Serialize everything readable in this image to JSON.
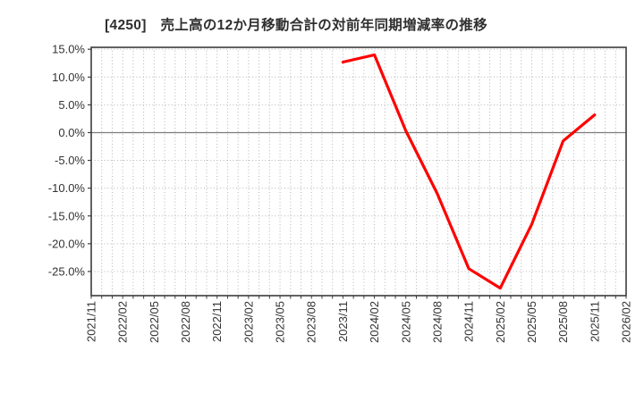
{
  "chart_data": {
    "type": "line",
    "title": "[4250]　売上高の12か月移動合計の対前年同期増減率の推移",
    "ylabel": "",
    "xlabel": "",
    "grid": "dotted, monthly vertical gridlines, 5% horizontal gridlines, solid zero line",
    "legend": "none",
    "x_tick_labels": [
      "2021/11",
      "2022/02",
      "2022/05",
      "2022/08",
      "2022/11",
      "2023/02",
      "2023/05",
      "2023/08",
      "2023/11",
      "2024/02",
      "2024/05",
      "2024/08",
      "2024/11",
      "2025/02",
      "2025/05",
      "2025/08",
      "2025/11",
      "2026/02"
    ],
    "y_tick_labels": [
      "15.0%",
      "10.0%",
      "5.0%",
      "0.0%",
      "-5.0%",
      "-10.0%",
      "-15.0%",
      "-20.0%",
      "-25.0%"
    ],
    "y_tick_values": [
      15,
      10,
      5,
      0,
      -5,
      -10,
      -15,
      -20,
      -25
    ],
    "ylim": [
      -29.35,
      15.35
    ],
    "x_range_months": 51,
    "series": [
      {
        "name": "売上高12か月移動合計の対前年同期増減率",
        "color": "#ff0000",
        "x": [
          "2023/11",
          "2024/02",
          "2024/05",
          "2024/08",
          "2024/11",
          "2025/02",
          "2025/05",
          "2025/08",
          "2025/11"
        ],
        "x_month_index": [
          24,
          27,
          30,
          33,
          36,
          39,
          42,
          45,
          48
        ],
        "values": [
          12.7,
          14.0,
          0.3,
          -11.0,
          -24.5,
          -28.0,
          -16.5,
          -1.5,
          3.2
        ]
      }
    ],
    "colors": {
      "line": "#ff0000",
      "title_text": "#2e2e2e",
      "tick_text": "#333333",
      "grid": "#b3b3b3",
      "zero_line": "#7d7d7d",
      "border": "#3c3c3c",
      "background": "#ffffff"
    }
  }
}
